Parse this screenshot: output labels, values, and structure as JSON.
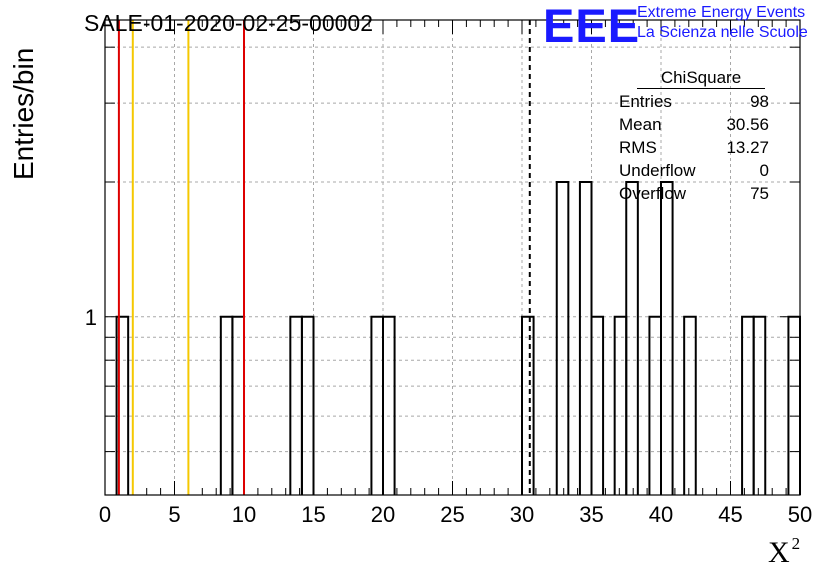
{
  "chart_data": {
    "type": "histogram",
    "title": "SALE-01-2020-02-25-00002",
    "xlabel": "X",
    "xlabel_superscript": "2",
    "ylabel": "Entries/bin",
    "xlim": [
      0,
      50
    ],
    "yscale": "log",
    "ylim": [
      0.4,
      4.6
    ],
    "bin_width": 0.8333,
    "x_ticks": [
      0,
      5,
      10,
      15,
      20,
      25,
      30,
      35,
      40,
      45,
      50
    ],
    "x_tick_labels": [
      "0",
      "5",
      "10",
      "15",
      "20",
      "25",
      "30",
      "35",
      "40",
      "45",
      "50"
    ],
    "y_tick_labels": [
      {
        "value": 1,
        "label": "1"
      }
    ],
    "grid": true,
    "bins": [
      {
        "x": 0.833,
        "count": 1
      },
      {
        "x": 8.333,
        "count": 1
      },
      {
        "x": 9.167,
        "count": 1
      },
      {
        "x": 13.333,
        "count": 1
      },
      {
        "x": 14.167,
        "count": 1
      },
      {
        "x": 19.167,
        "count": 1
      },
      {
        "x": 20.0,
        "count": 1
      },
      {
        "x": 30.0,
        "count": 1
      },
      {
        "x": 32.5,
        "count": 2
      },
      {
        "x": 34.167,
        "count": 2
      },
      {
        "x": 35.0,
        "count": 1
      },
      {
        "x": 36.667,
        "count": 1
      },
      {
        "x": 37.5,
        "count": 2
      },
      {
        "x": 39.167,
        "count": 1
      },
      {
        "x": 40.0,
        "count": 2
      },
      {
        "x": 41.667,
        "count": 1
      },
      {
        "x": 45.833,
        "count": 1
      },
      {
        "x": 46.667,
        "count": 1
      },
      {
        "x": 49.167,
        "count": 1
      }
    ],
    "vertical_lines": [
      {
        "x": 1.0,
        "color": "#dd0000",
        "style": "solid"
      },
      {
        "x": 2.0,
        "color": "#f5c800",
        "style": "solid"
      },
      {
        "x": 6.0,
        "color": "#f5c800",
        "style": "solid"
      },
      {
        "x": 10.0,
        "color": "#dd0000",
        "style": "solid"
      },
      {
        "x": 30.56,
        "color": "#000000",
        "style": "dashed"
      }
    ]
  },
  "logo": {
    "text": "EEE",
    "line1": "Extreme Energy Events",
    "line2": "La Scienza nelle Scuole",
    "color": "#1a1aff"
  },
  "stats": {
    "title": "ChiSquare",
    "rows": [
      {
        "label": "Entries",
        "value": "98"
      },
      {
        "label": "Mean",
        "value": "30.56"
      },
      {
        "label": "RMS",
        "value": "13.27"
      },
      {
        "label": "Underflow",
        "value": "0"
      },
      {
        "label": "Overflow",
        "value": "75"
      }
    ]
  }
}
